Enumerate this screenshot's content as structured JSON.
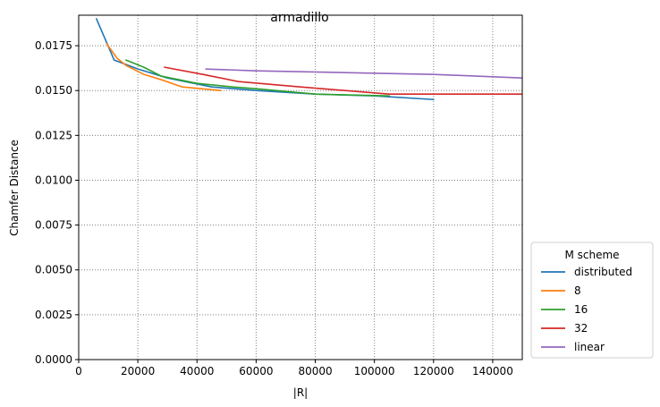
{
  "chart_data": {
    "type": "line",
    "title": "armadillo",
    "xlabel": "|R|",
    "ylabel": "Chamfer Distance",
    "xlim": [
      0,
      150000
    ],
    "ylim": [
      0,
      0.0192
    ],
    "x_ticks": [
      0,
      20000,
      40000,
      60000,
      80000,
      100000,
      120000,
      140000
    ],
    "x_tick_labels": [
      "0",
      "20000",
      "40000",
      "60000",
      "80000",
      "100000",
      "120000",
      "140000"
    ],
    "y_ticks": [
      0,
      0.0025,
      0.005,
      0.0075,
      0.01,
      0.0125,
      0.015,
      0.0175
    ],
    "y_tick_labels": [
      "0.0000",
      "0.0025",
      "0.0050",
      "0.0075",
      "0.0100",
      "0.0125",
      "0.0150",
      "0.0175"
    ],
    "grid": true,
    "legend": {
      "title": "M scheme",
      "placement": "outside-lower-right"
    },
    "series": [
      {
        "name": "distributed",
        "color": "#1f77b4",
        "points": [
          [
            6000,
            0.019
          ],
          [
            12000,
            0.0167
          ],
          [
            20000,
            0.0162
          ],
          [
            30000,
            0.0157
          ],
          [
            45000,
            0.0152
          ],
          [
            60000,
            0.015
          ],
          [
            80000,
            0.0148
          ],
          [
            100000,
            0.0147
          ],
          [
            120000,
            0.0145
          ]
        ]
      },
      {
        "name": "8",
        "color": "#ff7f0e",
        "points": [
          [
            9500,
            0.0176
          ],
          [
            13000,
            0.0168
          ],
          [
            16000,
            0.0164
          ],
          [
            22000,
            0.0159
          ],
          [
            28000,
            0.0156
          ],
          [
            35000,
            0.0152
          ],
          [
            48000,
            0.015
          ]
        ]
      },
      {
        "name": "16",
        "color": "#2ca02c",
        "points": [
          [
            16000,
            0.0167
          ],
          [
            22000,
            0.0163
          ],
          [
            28000,
            0.0158
          ],
          [
            40000,
            0.0154
          ],
          [
            52000,
            0.0152
          ],
          [
            60000,
            0.0151
          ],
          [
            80000,
            0.0148
          ],
          [
            105000,
            0.0147
          ]
        ]
      },
      {
        "name": "32",
        "color": "#d62728",
        "points": [
          [
            29000,
            0.0163
          ],
          [
            42000,
            0.0159
          ],
          [
            54000,
            0.0155
          ],
          [
            75000,
            0.0152
          ],
          [
            105000,
            0.0148
          ],
          [
            125000,
            0.0148
          ],
          [
            150000,
            0.0148
          ]
        ]
      },
      {
        "name": "linear",
        "color": "#9467bd",
        "points": [
          [
            43000,
            0.0162
          ],
          [
            60000,
            0.0161
          ],
          [
            90000,
            0.016
          ],
          [
            120000,
            0.0159
          ],
          [
            150000,
            0.0157
          ]
        ]
      }
    ]
  }
}
